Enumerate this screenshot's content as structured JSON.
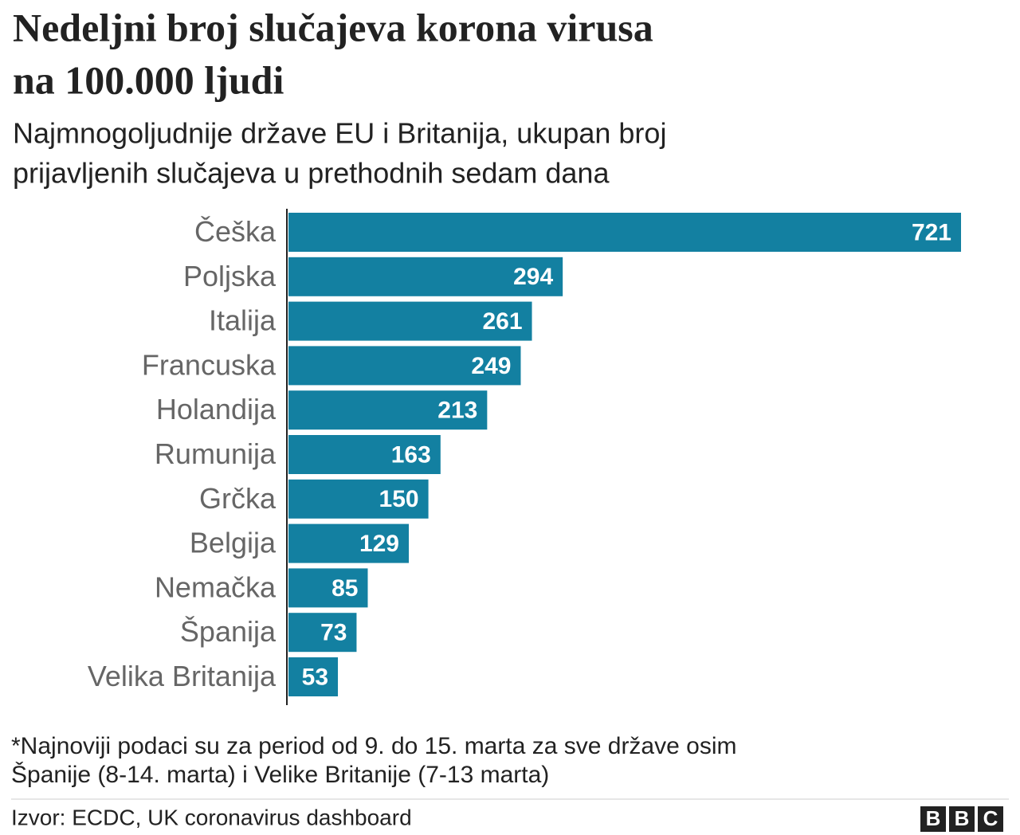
{
  "chart_data": {
    "type": "bar",
    "orientation": "horizontal",
    "title": [
      "Nedeljni broj slučajeva korona virusa",
      "na 100.000 ljudi"
    ],
    "subtitle": [
      "Najmnogoljudnije države EU i Britanija, ukupan broj",
      "prijavljenih slučajeva u prethodnih sedam dana"
    ],
    "categories": [
      "Češka",
      "Poljska",
      "Italija",
      "Francuska",
      "Holandija",
      "Rumunija",
      "Grčka",
      "Belgija",
      "Nemačka",
      "Španija",
      "Velika Britanija"
    ],
    "values": [
      721,
      294,
      261,
      249,
      213,
      163,
      150,
      129,
      85,
      73,
      53
    ],
    "color": "#1380a1",
    "note": [
      "*Najnoviji podaci su za period od 9. do 15. marta za sve države osim",
      "Španije (8-14. marta) i Velike Britanije (7-13 marta)"
    ],
    "source": "Izvor: ECDC, UK coronavirus dashboard",
    "logo": [
      "B",
      "B",
      "C"
    ]
  }
}
